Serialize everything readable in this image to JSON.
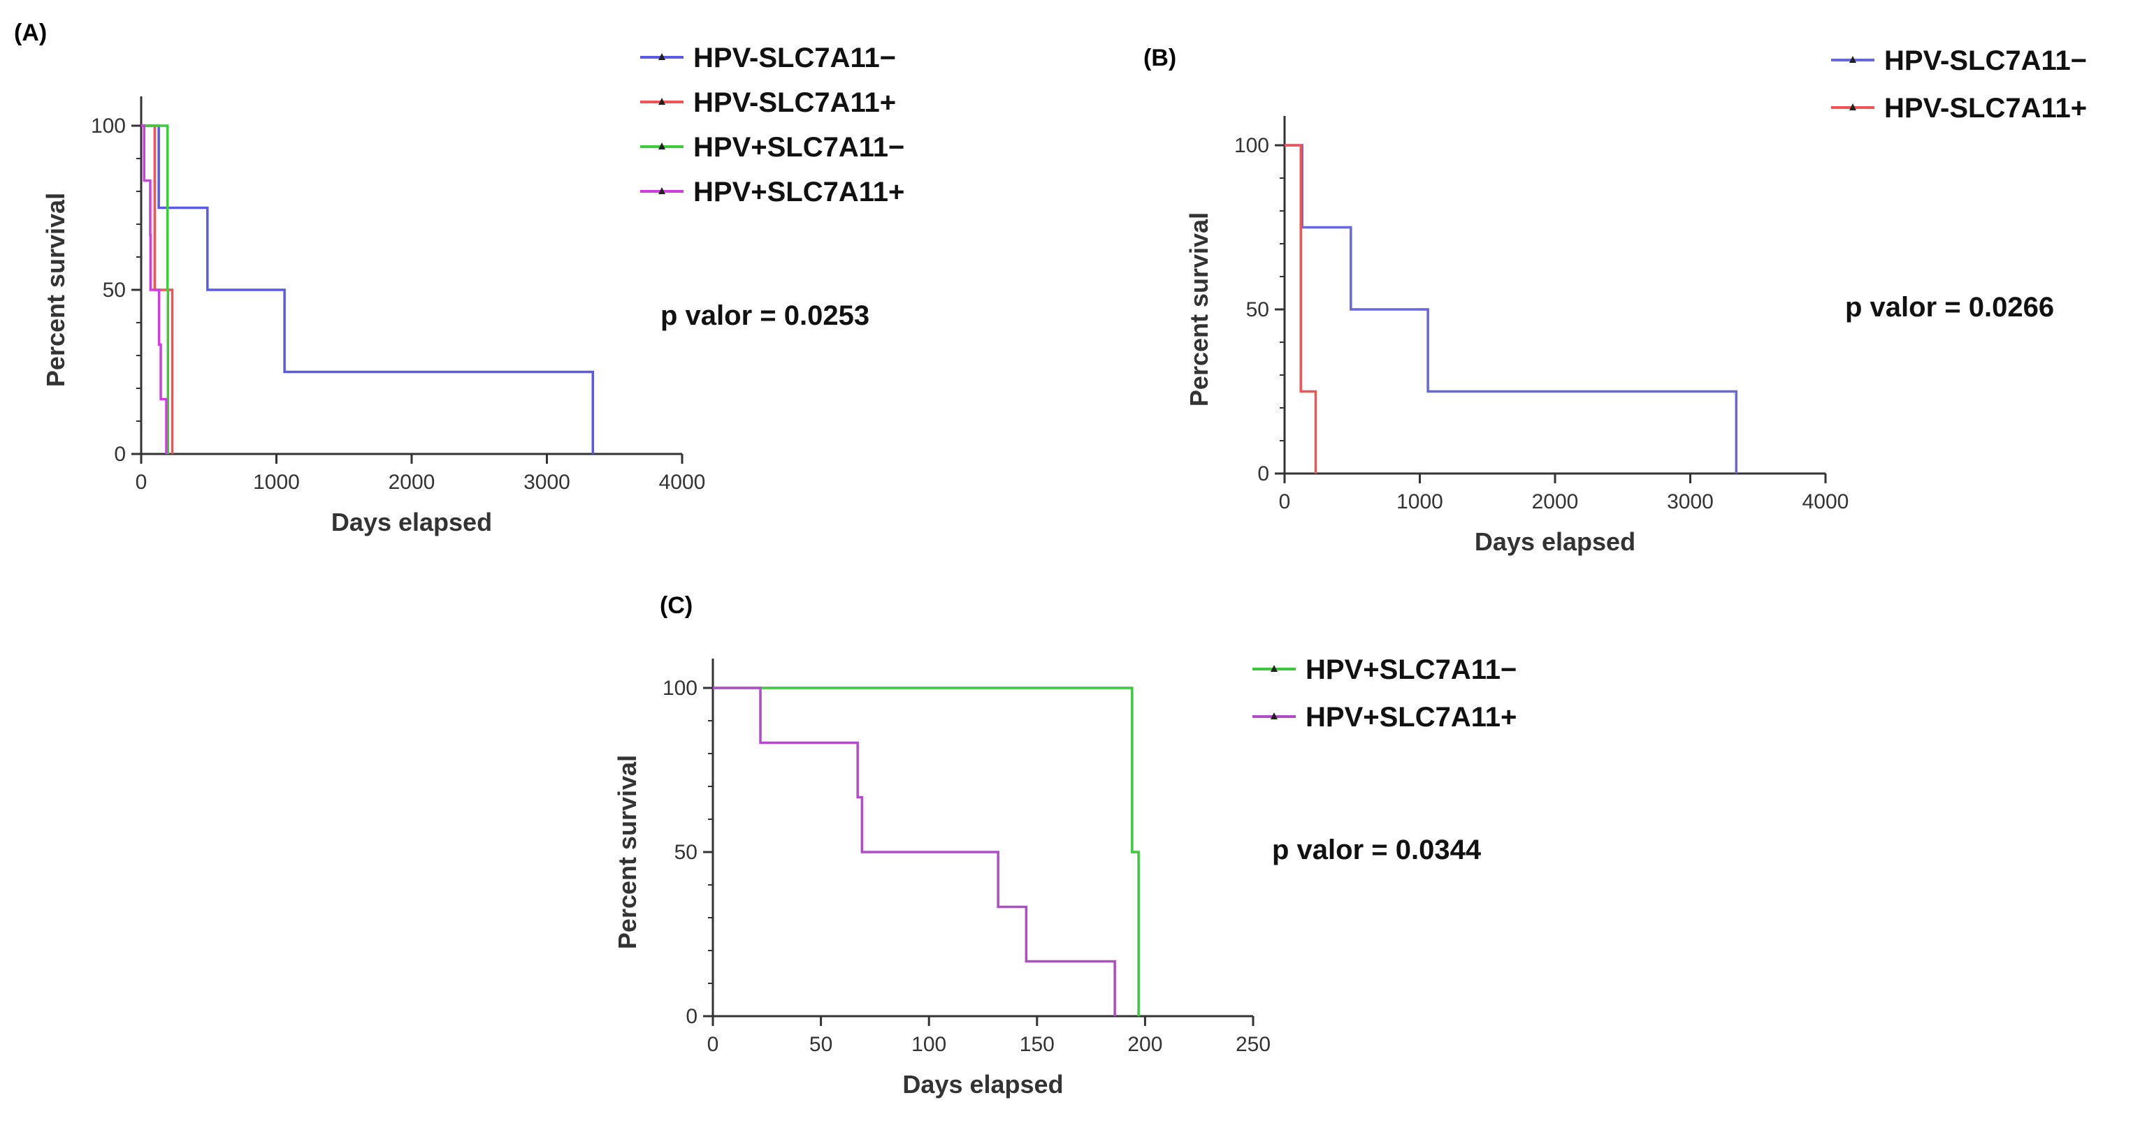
{
  "chart_data": [
    {
      "id": "A",
      "panel_label": "(A)",
      "type": "line",
      "subtype": "kaplan-meier step",
      "xlabel": "Days elapsed",
      "ylabel": "Percent survival",
      "xlim": [
        0,
        4000
      ],
      "ylim": [
        0,
        100
      ],
      "xticks": [
        0,
        1000,
        2000,
        3000,
        4000
      ],
      "yticks": [
        0,
        50,
        100
      ],
      "legend_placement": "top-right",
      "p_value_text": "p valor = 0.0253",
      "series": [
        {
          "name": "HPV-SLC7A11−",
          "color": "#5a5ae8",
          "x": [
            0,
            130,
            490,
            1060,
            3340
          ],
          "y": [
            100,
            75,
            50,
            25,
            0
          ]
        },
        {
          "name": "HPV-SLC7A11+",
          "color": "#f05454",
          "x": [
            0,
            100,
            230
          ],
          "y": [
            100,
            50,
            0
          ]
        },
        {
          "name": "HPV+SLC7A11−",
          "color": "#3ccc3c",
          "x": [
            0,
            195,
            198
          ],
          "y": [
            100,
            50,
            0
          ]
        },
        {
          "name": "HPV+SLC7A11+",
          "color": "#d13ee0",
          "x": [
            0,
            22,
            67,
            69,
            132,
            145,
            186
          ],
          "y": [
            100,
            83.3,
            66.7,
            50,
            33.3,
            16.7,
            0
          ]
        }
      ]
    },
    {
      "id": "B",
      "panel_label": "(B)",
      "type": "line",
      "subtype": "kaplan-meier step",
      "xlabel": "Days elapsed",
      "ylabel": "Percent survival",
      "xlim": [
        0,
        4000
      ],
      "ylim": [
        0,
        100
      ],
      "xticks": [
        0,
        1000,
        2000,
        3000,
        4000
      ],
      "yticks": [
        0,
        50,
        100
      ],
      "legend_placement": "top-right",
      "p_value_text": "p valor = 0.0266",
      "series": [
        {
          "name": "HPV-SLC7A11−",
          "color": "#6666dd",
          "x": [
            0,
            130,
            490,
            1060,
            3340
          ],
          "y": [
            100,
            75,
            50,
            25,
            0
          ]
        },
        {
          "name": "HPV-SLC7A11+",
          "color": "#f05454",
          "x": [
            0,
            120,
            230
          ],
          "y": [
            100,
            25,
            0
          ]
        }
      ]
    },
    {
      "id": "C",
      "panel_label": "(C)",
      "type": "line",
      "subtype": "kaplan-meier step",
      "xlabel": "Days elapsed",
      "ylabel": "Percent survival",
      "xlim": [
        0,
        250
      ],
      "ylim": [
        0,
        100
      ],
      "xticks": [
        0,
        50,
        100,
        150,
        200,
        250
      ],
      "yticks": [
        0,
        50,
        100
      ],
      "legend_placement": "top-right",
      "p_value_text": "p valor = 0.0344",
      "series": [
        {
          "name": "HPV+SLC7A11−",
          "color": "#3cc83c",
          "x": [
            0,
            194,
            197
          ],
          "y": [
            100,
            50,
            0
          ]
        },
        {
          "name": "HPV+SLC7A11+",
          "color": "#b04cc8",
          "x": [
            0,
            22,
            67,
            69,
            132,
            145,
            186
          ],
          "y": [
            100,
            83.3,
            66.7,
            50,
            33.3,
            16.7,
            0
          ]
        }
      ]
    }
  ]
}
